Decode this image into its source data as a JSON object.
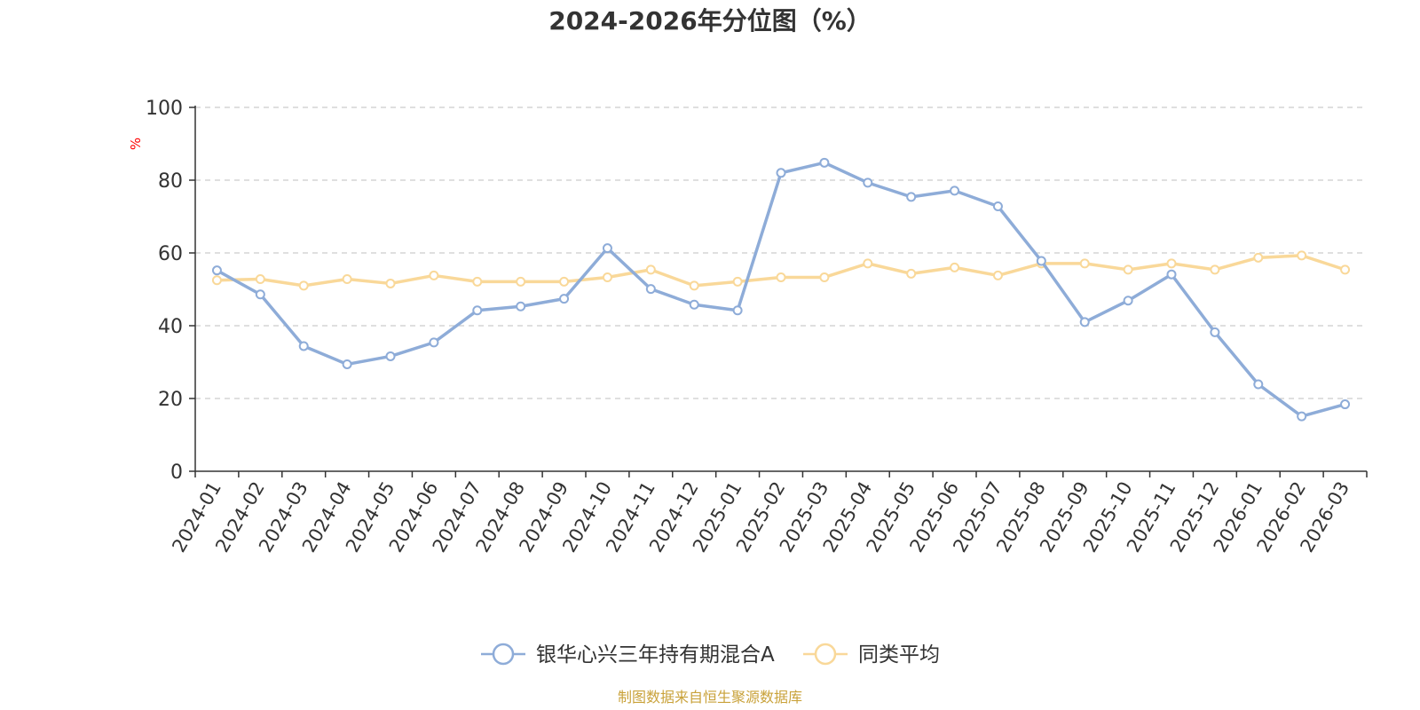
{
  "chart_data": {
    "type": "line",
    "title": "2024-2026年分位图（%）",
    "ylabel": "%",
    "ylim": [
      0,
      100
    ],
    "yticks": [
      0,
      20,
      40,
      60,
      80,
      100
    ],
    "grid": true,
    "legend_position": "bottom",
    "categories": [
      "2024-01",
      "2024-02",
      "2024-03",
      "2024-04",
      "2024-05",
      "2024-06",
      "2024-07",
      "2024-08",
      "2024-09",
      "2024-10",
      "2024-11",
      "2024-12",
      "2025-01",
      "2025-02",
      "2025-03",
      "2025-04",
      "2025-05",
      "2025-06",
      "2025-07",
      "2025-08",
      "2025-09",
      "2025-10",
      "2025-11",
      "2025-12",
      "2026-01",
      "2026-02",
      "2026-03"
    ],
    "series": [
      {
        "name": "银华心兴三年持有期混合A",
        "color": "#8eacd8",
        "values": [
          55.2,
          48.6,
          34.4,
          29.4,
          31.6,
          35.4,
          44.2,
          45.3,
          47.4,
          61.3,
          50.1,
          45.8,
          44.2,
          82.0,
          84.8,
          79.3,
          75.4,
          77.1,
          72.8,
          57.8,
          41.0,
          46.9,
          54.1,
          38.2,
          23.9,
          15.1,
          18.4
        ]
      },
      {
        "name": "同类平均",
        "color": "#f9d899",
        "values": [
          52.5,
          52.8,
          51.0,
          52.8,
          51.6,
          53.8,
          52.1,
          52.1,
          52.1,
          53.3,
          55.4,
          51.0,
          52.1,
          53.3,
          53.3,
          57.1,
          54.3,
          56.0,
          53.8,
          57.1,
          57.1,
          55.4,
          57.1,
          55.4,
          58.7,
          59.3,
          55.4
        ]
      }
    ]
  },
  "source_text": "制图数据来自恒生聚源数据库",
  "source_color": "#c9a23a",
  "gridline_color": "#cccccc",
  "axis_color": "#333333"
}
